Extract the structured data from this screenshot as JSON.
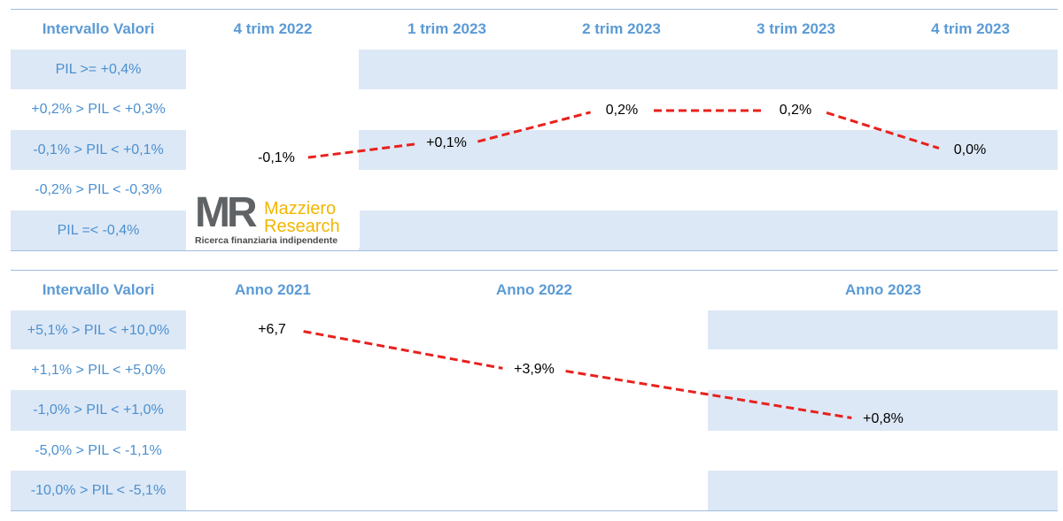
{
  "chart_data": [
    {
      "type": "line",
      "header_label": "Intervallo Valori",
      "categories": [
        "4 trim 2022",
        "1 trim 2023",
        "2 trim 2023",
        "3 trim 2023",
        "4 trim 2023"
      ],
      "rows": [
        "PIL >= +0,4%",
        "+0,2% > PIL < +0,3%",
        "-0,1% > PIL < +0,1%",
        "-0,2% > PIL < -0,3%",
        "PIL =< -0,4%"
      ],
      "values": [
        -0.1,
        0.1,
        0.2,
        0.2,
        0.0
      ],
      "point_labels": [
        "-0,1%",
        "+0,1%",
        "0,2%",
        "0,2%",
        "0,0%"
      ],
      "line_color": "#e8211d",
      "line_style": "dashed"
    },
    {
      "type": "line",
      "header_label": "Intervallo Valori",
      "categories": [
        "Anno 2021",
        "Anno 2022",
        "Anno 2023"
      ],
      "rows": [
        "+5,1% > PIL < +10,0%",
        "+1,1% > PIL < +5,0%",
        "-1,0% > PIL < +1,0%",
        "-5,0% > PIL < -1,1%",
        "-10,0% > PIL < -5,1%"
      ],
      "values": [
        6.7,
        3.9,
        0.8
      ],
      "point_labels": [
        "+6,7",
        "+3,9%",
        "+0,8%"
      ],
      "line_color": "#e8211d",
      "line_style": "dashed"
    }
  ],
  "logo": {
    "mark": "MR",
    "brand_line1": "Mazziero",
    "brand_line2": "Research",
    "tagline": "Ricerca finanziaria indipendente"
  },
  "colors": {
    "header_text": "#5b9bd5",
    "row_label_text": "#4a90d0",
    "band_fill": "#dde8f6",
    "rule": "#9fbde0",
    "logo_yellow": "#f2b600",
    "logo_grey": "#5f6366"
  }
}
